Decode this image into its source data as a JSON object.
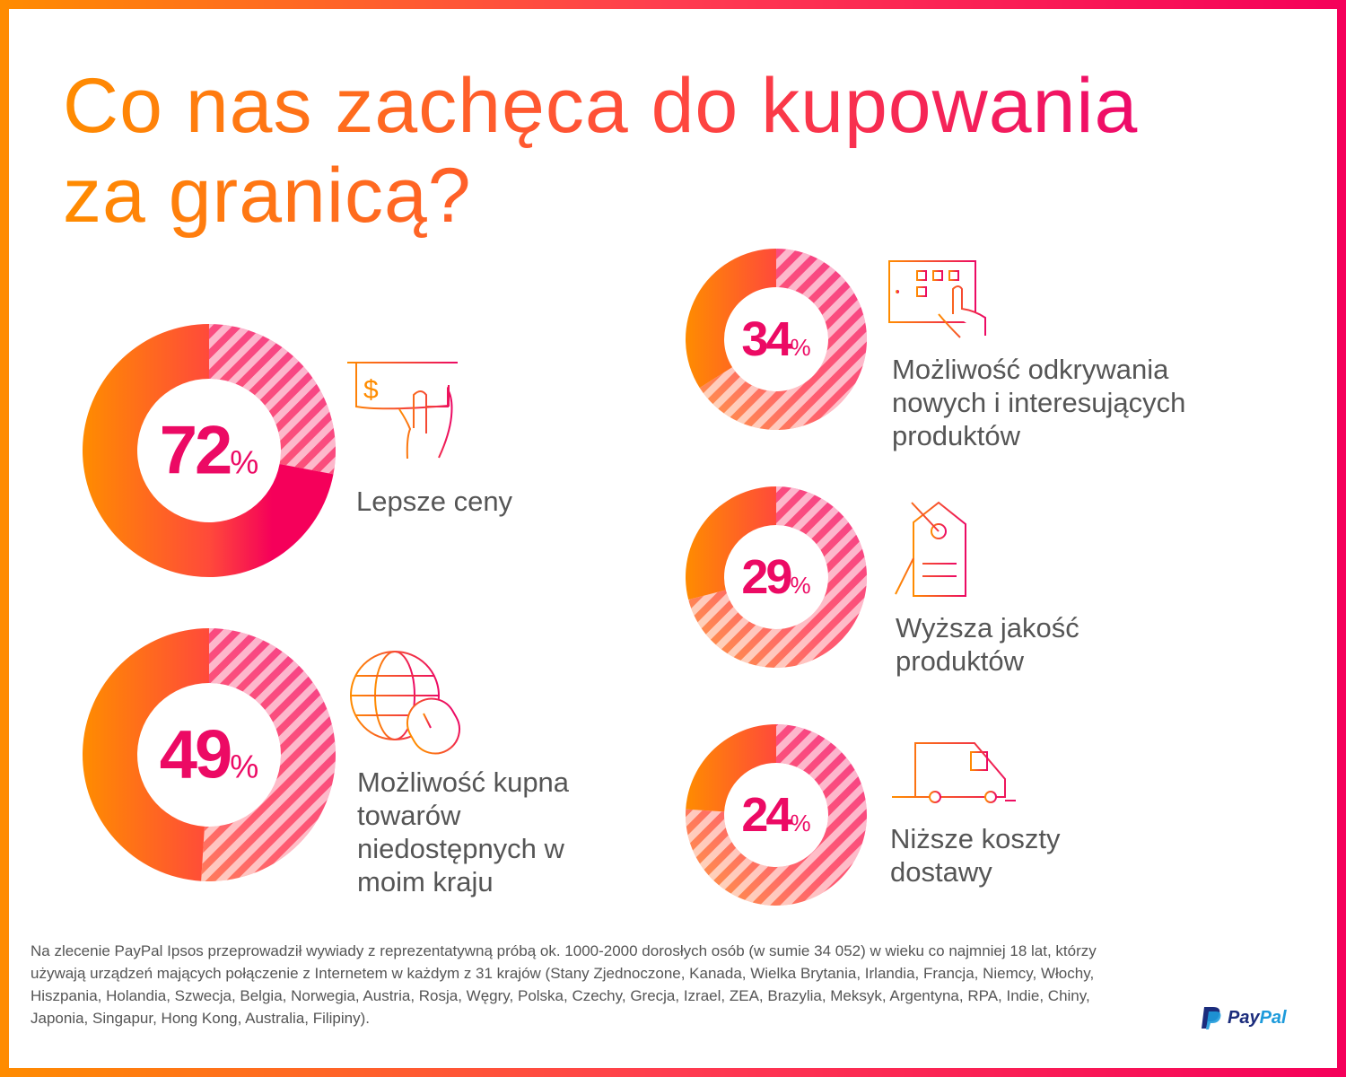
{
  "title": {
    "line1": "Co nas zachęca do kupowania",
    "line2": "za granicą?"
  },
  "colors": {
    "orange": "#ff8c00",
    "pink": "#f5005a",
    "text": "#555555",
    "percent": "#ec0a64"
  },
  "chart_data": {
    "type": "pie",
    "variant": "donut",
    "unit": "%",
    "items": [
      {
        "label": "Lepsze ceny",
        "value": 72,
        "icon": "dollar-bill-hand-icon"
      },
      {
        "label": "Możliwość kupna towarów niedostępnych w moim kraju",
        "value": 49,
        "icon": "globe-mouse-icon"
      },
      {
        "label": "Możliwość odkrywania nowych i interesujących produktów",
        "value": 34,
        "icon": "tablet-touch-icon"
      },
      {
        "label": "Wyższa jakość produktów",
        "value": 29,
        "icon": "price-tag-icon"
      },
      {
        "label": "Niższe koszty dostawy",
        "value": 24,
        "icon": "delivery-van-icon"
      }
    ]
  },
  "labels": {
    "l0": [
      "Lepsze ceny"
    ],
    "l1": [
      "Możliwość kupna",
      "towarów",
      "niedostępnych w",
      "moim kraju"
    ],
    "l2": [
      "Możliwość odkrywania",
      "nowych i interesujących",
      "produktów"
    ],
    "l3": [
      "Wyższa jakość",
      "produktów"
    ],
    "l4": [
      "Niższe koszty",
      "dostawy"
    ]
  },
  "percent_sign": "%",
  "footnote": "Na zlecenie PayPal Ipsos przeprowadził wywiady z reprezentatywną próbą ok. 1000-2000 dorosłych osób (w sumie 34 052) w wieku co najmniej 18 lat, którzy używają urządzeń mających połączenie z Internetem w każdym z 31 krajów (Stany Zjednoczone, Kanada, Wielka Brytania, Irlandia, Francja, Niemcy, Włochy, Hiszpania, Holandia, Szwecja, Belgia, Norwegia, Austria, Rosja, Węgry, Polska, Czechy, Grecja, Izrael, ZEA, Brazylia, Meksyk, Argentyna, RPA, Indie, Chiny, Japonia, Singapur, Hong Kong, Australia, Filipiny).",
  "logo": {
    "pay": "Pay",
    "pal": "Pal"
  }
}
